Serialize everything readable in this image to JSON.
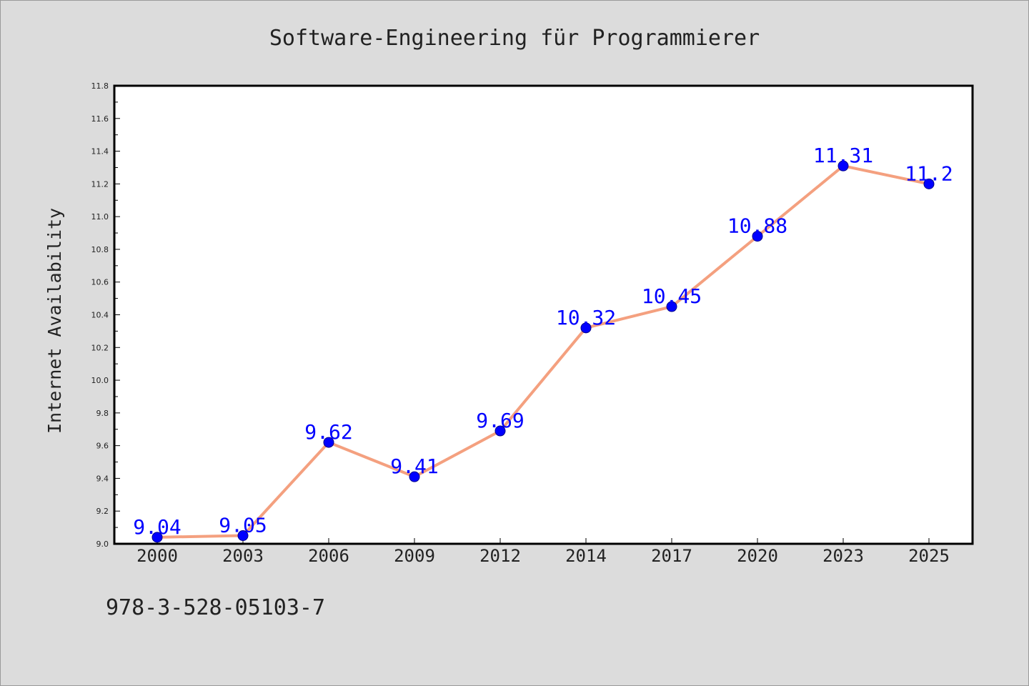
{
  "chart_data": {
    "type": "line",
    "title": "Software-Engineering für Programmierer",
    "xlabel": "",
    "ylabel": "Internet Availability",
    "categories": [
      "2000",
      "2003",
      "2006",
      "2009",
      "2012",
      "2014",
      "2017",
      "2020",
      "2023",
      "2025"
    ],
    "series": [
      {
        "values": [
          9.04,
          9.05,
          9.62,
          9.41,
          9.69,
          10.32,
          10.45,
          10.88,
          11.31,
          11.2
        ],
        "labels": [
          "9.04",
          "9.05",
          "9.62",
          "9.41",
          "9.69",
          "10.32",
          "10.45",
          "10.88",
          "11.31",
          "11.2"
        ]
      }
    ],
    "ylim": [
      9.0,
      11.8
    ],
    "yticks": [
      "9.0",
      "9.2",
      "9.4",
      "9.6",
      "9.8",
      "10.0",
      "10.2",
      "10.4",
      "10.6",
      "10.8",
      "11.0",
      "11.2",
      "11.4",
      "11.6",
      "11.8"
    ],
    "grid": false,
    "legend": "none",
    "colors": {
      "line": "#f4a07f",
      "marker": "#0000ff",
      "data_label": "#0000ff",
      "background": "#dcdcdc",
      "plot_area": "#ffffff"
    }
  },
  "footer": {
    "isbn": "978-3-528-05103-7"
  }
}
